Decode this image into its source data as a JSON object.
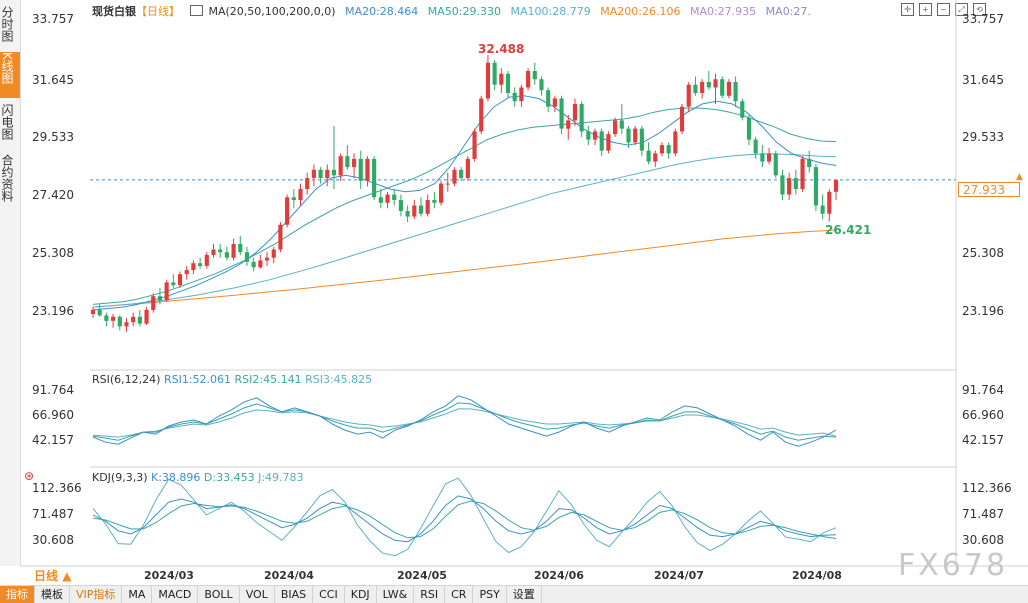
{
  "header": {
    "instrument": "现货白银",
    "period": "【日线】",
    "ma_params": "MA(20,50,100,200,0,0)",
    "ma20": "MA20:28.464",
    "ma50": "MA50:29.330",
    "ma100": "MA100:28.779",
    "ma200": "MA200:26.106",
    "ma0a": "MA0:27.935",
    "ma0b": "MA0:27."
  },
  "left_tabs": [
    {
      "label": "分时图"
    },
    {
      "label": "K线图",
      "active": true
    },
    {
      "label": "闪电图"
    },
    {
      "label": "合约资料"
    }
  ],
  "price_axis_labels": [
    "33.757",
    "31.645",
    "29.533",
    "27.420",
    "25.308",
    "23.196"
  ],
  "rsi_axis_labels": [
    "91.764",
    "66.960",
    "42.157"
  ],
  "kdj_axis_labels": [
    "112.366",
    "71.487",
    "30.608"
  ],
  "current_price": "27.933",
  "high_label": "32.488",
  "low_label": "26.421",
  "rsi_header": {
    "params": "RSI(6,12,24)",
    "rsi1": "RSI1:52.061",
    "rsi2": "RSI2:45.141",
    "rsi3": "RSI3:45.825"
  },
  "kdj_header": {
    "params": "KDJ(9,3,3)",
    "k": "K:38.896",
    "d": "D:33.453",
    "j": "J:49.783"
  },
  "x_labels": [
    "2024/03",
    "2024/04",
    "2024/05",
    "2024/06",
    "2024/07",
    "2024/08"
  ],
  "period_selector": "日线",
  "bottom_tabs": [
    "指标",
    "模板",
    "VIP指标",
    "MA",
    "MACD",
    "BOLL",
    "VOL",
    "BIAS",
    "CCI",
    "KDJ",
    "LW&",
    "RSI",
    "CR",
    "PSY",
    "设置"
  ],
  "watermark": "FX678",
  "colors": {
    "up": "#e03c3c",
    "down": "#2eaa66",
    "ma20": "#3b8fd0",
    "ma50": "#3aa6a0",
    "ma100": "#5ab0c8",
    "ma200": "#f08a24",
    "accent": "#f08a24"
  },
  "chart_data": {
    "type": "candlestick",
    "x_range": [
      "2024/02",
      "2024/08"
    ],
    "ylim": [
      23.196,
      33.757
    ],
    "candles": [
      [
        23.05,
        23.3,
        22.9,
        23.2
      ],
      [
        23.2,
        23.4,
        22.95,
        23.0
      ],
      [
        23.0,
        23.1,
        22.6,
        22.8
      ],
      [
        22.8,
        23.05,
        22.55,
        22.95
      ],
      [
        22.95,
        23.0,
        22.45,
        22.6
      ],
      [
        22.6,
        22.9,
        22.4,
        22.75
      ],
      [
        22.75,
        23.1,
        22.6,
        22.95
      ],
      [
        22.95,
        23.2,
        22.6,
        22.7
      ],
      [
        22.7,
        23.3,
        22.65,
        23.2
      ],
      [
        23.2,
        23.8,
        23.1,
        23.7
      ],
      [
        23.7,
        24.0,
        23.4,
        23.55
      ],
      [
        23.55,
        24.3,
        23.5,
        24.2
      ],
      [
        24.2,
        24.5,
        24.0,
        24.1
      ],
      [
        24.1,
        24.6,
        24.0,
        24.5
      ],
      [
        24.5,
        24.8,
        24.3,
        24.65
      ],
      [
        24.65,
        25.0,
        24.5,
        24.9
      ],
      [
        24.9,
        25.1,
        24.7,
        24.8
      ],
      [
        24.8,
        25.3,
        24.7,
        25.2
      ],
      [
        25.2,
        25.6,
        25.1,
        25.4
      ],
      [
        25.4,
        25.6,
        25.1,
        25.3
      ],
      [
        25.3,
        25.5,
        25.0,
        25.1
      ],
      [
        25.1,
        25.8,
        25.0,
        25.6
      ],
      [
        25.6,
        25.9,
        25.2,
        25.3
      ],
      [
        25.3,
        25.5,
        24.8,
        24.95
      ],
      [
        24.95,
        25.1,
        24.6,
        24.75
      ],
      [
        24.75,
        25.2,
        24.7,
        25.0
      ],
      [
        25.0,
        25.3,
        24.8,
        25.1
      ],
      [
        25.1,
        25.5,
        24.9,
        25.4
      ],
      [
        25.4,
        26.4,
        25.3,
        26.3
      ],
      [
        26.3,
        27.4,
        26.2,
        27.3
      ],
      [
        27.3,
        27.6,
        26.9,
        27.2
      ],
      [
        27.2,
        27.8,
        27.0,
        27.6
      ],
      [
        27.6,
        28.2,
        27.4,
        28.0
      ],
      [
        28.0,
        28.5,
        27.7,
        28.3
      ],
      [
        28.3,
        28.4,
        27.8,
        28.0
      ],
      [
        28.0,
        28.5,
        27.7,
        28.3
      ],
      [
        28.3,
        29.9,
        27.6,
        28.1
      ],
      [
        28.1,
        28.9,
        27.9,
        28.8
      ],
      [
        28.8,
        29.2,
        28.3,
        28.4
      ],
      [
        28.4,
        28.9,
        28.0,
        28.7
      ],
      [
        28.7,
        29.0,
        27.6,
        27.9
      ],
      [
        27.9,
        28.8,
        27.7,
        28.7
      ],
      [
        28.7,
        28.8,
        27.2,
        27.3
      ],
      [
        27.3,
        27.6,
        26.9,
        27.1
      ],
      [
        27.1,
        27.5,
        26.9,
        27.4
      ],
      [
        27.4,
        27.6,
        27.0,
        27.2
      ],
      [
        27.2,
        27.4,
        26.6,
        26.8
      ],
      [
        26.8,
        27.0,
        26.4,
        26.6
      ],
      [
        26.6,
        27.2,
        26.5,
        27.0
      ],
      [
        27.0,
        27.3,
        26.6,
        26.7
      ],
      [
        26.7,
        27.4,
        26.6,
        27.2
      ],
      [
        27.2,
        27.5,
        26.9,
        27.1
      ],
      [
        27.1,
        27.9,
        27.0,
        27.8
      ],
      [
        27.8,
        28.2,
        27.5,
        27.8
      ],
      [
        27.8,
        28.4,
        27.7,
        28.3
      ],
      [
        28.3,
        28.4,
        27.9,
        28.0
      ],
      [
        28.0,
        28.8,
        27.9,
        28.7
      ],
      [
        28.7,
        29.8,
        28.6,
        29.7
      ],
      [
        29.7,
        31.0,
        29.6,
        30.9
      ],
      [
        30.9,
        32.49,
        30.8,
        32.2
      ],
      [
        32.2,
        32.3,
        31.2,
        31.4
      ],
      [
        31.4,
        32.0,
        31.1,
        31.8
      ],
      [
        31.8,
        31.9,
        30.9,
        31.1
      ],
      [
        31.1,
        31.3,
        30.6,
        30.8
      ],
      [
        30.8,
        31.4,
        30.6,
        31.3
      ],
      [
        31.3,
        32.0,
        31.2,
        31.9
      ],
      [
        31.9,
        32.2,
        31.4,
        31.6
      ],
      [
        31.6,
        31.7,
        31.0,
        31.2
      ],
      [
        31.2,
        31.3,
        30.4,
        30.6
      ],
      [
        30.6,
        31.0,
        30.4,
        30.9
      ],
      [
        30.9,
        31.0,
        29.6,
        29.8
      ],
      [
        29.8,
        30.3,
        29.4,
        30.1
      ],
      [
        30.1,
        30.9,
        29.9,
        30.7
      ],
      [
        30.7,
        30.8,
        29.5,
        29.7
      ],
      [
        29.7,
        29.9,
        29.2,
        29.4
      ],
      [
        29.4,
        29.8,
        29.2,
        29.7
      ],
      [
        29.7,
        29.8,
        28.8,
        29.0
      ],
      [
        29.0,
        29.7,
        28.9,
        29.6
      ],
      [
        29.6,
        30.2,
        29.5,
        30.1
      ],
      [
        30.1,
        30.7,
        29.6,
        29.8
      ],
      [
        29.8,
        29.9,
        29.1,
        29.3
      ],
      [
        29.3,
        29.9,
        29.2,
        29.8
      ],
      [
        29.8,
        29.9,
        28.8,
        29.0
      ],
      [
        29.0,
        29.3,
        28.5,
        28.6
      ],
      [
        28.6,
        29.0,
        28.4,
        28.9
      ],
      [
        28.9,
        29.3,
        28.8,
        29.2
      ],
      [
        29.2,
        29.3,
        28.7,
        28.9
      ],
      [
        28.9,
        29.8,
        28.8,
        29.7
      ],
      [
        29.7,
        30.7,
        29.6,
        30.6
      ],
      [
        30.6,
        31.5,
        30.4,
        31.4
      ],
      [
        31.4,
        31.7,
        31.0,
        31.1
      ],
      [
        31.1,
        31.6,
        30.9,
        31.5
      ],
      [
        31.5,
        31.9,
        31.2,
        31.3
      ],
      [
        31.3,
        31.8,
        30.7,
        31.6
      ],
      [
        31.6,
        31.7,
        30.9,
        31.0
      ],
      [
        31.0,
        31.6,
        30.9,
        31.5
      ],
      [
        31.5,
        31.7,
        30.6,
        30.8
      ],
      [
        30.8,
        30.9,
        30.1,
        30.2
      ],
      [
        30.2,
        30.3,
        29.2,
        29.4
      ],
      [
        29.4,
        29.5,
        28.7,
        28.9
      ],
      [
        28.9,
        29.2,
        28.4,
        28.6
      ],
      [
        28.6,
        29.1,
        28.5,
        28.9
      ],
      [
        28.9,
        29.0,
        28.0,
        28.1
      ],
      [
        28.1,
        28.3,
        27.2,
        27.4
      ],
      [
        27.4,
        28.2,
        27.2,
        28.0
      ],
      [
        28.0,
        28.3,
        27.4,
        27.6
      ],
      [
        27.6,
        28.8,
        27.5,
        28.7
      ],
      [
        28.7,
        29.0,
        28.2,
        28.4
      ],
      [
        28.4,
        28.5,
        26.8,
        27.0
      ],
      [
        27.0,
        27.4,
        26.5,
        26.7
      ],
      [
        26.7,
        27.6,
        26.42,
        27.5
      ],
      [
        27.5,
        27.93,
        27.2,
        27.93
      ]
    ],
    "ma20": [
      23.2,
      23.25,
      23.3,
      23.4,
      23.55,
      23.7,
      23.9,
      24.1,
      24.35,
      24.6,
      24.9,
      25.3,
      25.8,
      26.4,
      27.0,
      27.6,
      28.0,
      28.1,
      28.0,
      27.8,
      27.6,
      27.5,
      27.55,
      27.8,
      28.4,
      29.2,
      30.0,
      30.6,
      30.95,
      31.0,
      30.9,
      30.6,
      30.2,
      29.8,
      29.5,
      29.3,
      29.2,
      29.3,
      29.6,
      30.0,
      30.4,
      30.7,
      30.8,
      30.7,
      30.4,
      29.9,
      29.3,
      28.9,
      28.7,
      28.55,
      28.46
    ],
    "ma50": [
      23.4,
      23.45,
      23.5,
      23.6,
      23.75,
      23.9,
      24.1,
      24.3,
      24.5,
      24.75,
      25.0,
      25.3,
      25.6,
      25.95,
      26.3,
      26.6,
      26.9,
      27.15,
      27.35,
      27.55,
      27.75,
      27.95,
      28.2,
      28.5,
      28.8,
      29.1,
      29.4,
      29.6,
      29.75,
      29.85,
      29.9,
      29.95,
      30.0,
      30.05,
      30.1,
      30.15,
      30.25,
      30.4,
      30.5,
      30.55,
      30.55,
      30.5,
      30.4,
      30.25,
      30.05,
      29.85,
      29.6,
      29.45,
      29.35,
      29.33
    ],
    "ma100": [
      23.3,
      23.35,
      23.4,
      23.48,
      23.55,
      23.65,
      23.75,
      23.88,
      24.0,
      24.15,
      24.3,
      24.48,
      24.66,
      24.85,
      25.05,
      25.25,
      25.45,
      25.65,
      25.85,
      26.05,
      26.25,
      26.45,
      26.65,
      26.85,
      27.05,
      27.25,
      27.45,
      27.6,
      27.75,
      27.9,
      28.05,
      28.2,
      28.35,
      28.5,
      28.62,
      28.72,
      28.8,
      28.85,
      28.88,
      28.87,
      28.84,
      28.8,
      28.78
    ],
    "ma200": [
      23.3,
      23.38,
      23.46,
      23.55,
      23.64,
      23.74,
      23.84,
      23.94,
      24.05,
      24.16,
      24.27,
      24.39,
      24.51,
      24.63,
      24.75,
      24.87,
      25.0,
      25.13,
      25.26,
      25.39,
      25.52,
      25.65,
      25.78,
      25.88,
      25.98,
      26.05,
      26.11
    ],
    "rsi_ylim": [
      42.157,
      91.764
    ],
    "rsi1": [
      45,
      40,
      38,
      44,
      50,
      48,
      56,
      60,
      62,
      58,
      66,
      72,
      80,
      84,
      76,
      70,
      74,
      70,
      66,
      58,
      52,
      48,
      50,
      44,
      52,
      56,
      62,
      70,
      76,
      86,
      82,
      74,
      66,
      58,
      54,
      50,
      46,
      50,
      56,
      60,
      54,
      50,
      56,
      60,
      64,
      62,
      70,
      76,
      74,
      68,
      62,
      56,
      48,
      42,
      50,
      40,
      36,
      40,
      45,
      52
    ],
    "rsi2": [
      46,
      44,
      42,
      46,
      50,
      50,
      55,
      58,
      60,
      58,
      63,
      68,
      74,
      78,
      74,
      70,
      72,
      70,
      66,
      61,
      57,
      54,
      54,
      50,
      54,
      57,
      61,
      67,
      72,
      79,
      78,
      73,
      68,
      63,
      59,
      56,
      53,
      54,
      57,
      59,
      56,
      54,
      57,
      59,
      62,
      61,
      66,
      70,
      70,
      66,
      62,
      58,
      53,
      48,
      51,
      45,
      42,
      44,
      46,
      45
    ],
    "rsi3": [
      47,
      46,
      45,
      47,
      50,
      51,
      54,
      56,
      58,
      57,
      60,
      64,
      69,
      72,
      71,
      69,
      70,
      69,
      66,
      63,
      60,
      58,
      57,
      55,
      56,
      58,
      60,
      64,
      68,
      73,
      73,
      71,
      68,
      65,
      62,
      60,
      58,
      58,
      59,
      60,
      58,
      57,
      58,
      59,
      61,
      61,
      64,
      67,
      67,
      65,
      63,
      60,
      57,
      53,
      54,
      50,
      47,
      48,
      49,
      46
    ],
    "kdj_ylim": [
      30.608,
      112.366
    ],
    "kdj_k": [
      70,
      60,
      45,
      40,
      50,
      70,
      90,
      95,
      90,
      80,
      82,
      86,
      80,
      70,
      60,
      50,
      55,
      65,
      80,
      90,
      86,
      70,
      55,
      40,
      30,
      28,
      40,
      60,
      85,
      100,
      95,
      80,
      60,
      45,
      40,
      45,
      60,
      80,
      78,
      65,
      50,
      40,
      45,
      55,
      70,
      85,
      80,
      65,
      50,
      38,
      36,
      40,
      50,
      60,
      55,
      45,
      40,
      36,
      38,
      39
    ],
    "kdj_d": [
      65,
      62,
      55,
      48,
      48,
      58,
      72,
      84,
      88,
      85,
      83,
      84,
      82,
      76,
      68,
      60,
      57,
      60,
      70,
      80,
      84,
      78,
      68,
      55,
      42,
      34,
      36,
      48,
      68,
      86,
      92,
      88,
      76,
      62,
      50,
      46,
      52,
      66,
      74,
      70,
      60,
      50,
      46,
      50,
      60,
      74,
      78,
      72,
      62,
      50,
      42,
      40,
      45,
      52,
      54,
      50,
      44,
      40,
      36,
      33
    ],
    "kdj_j": [
      80,
      56,
      25,
      24,
      54,
      94,
      126,
      117,
      94,
      70,
      80,
      90,
      76,
      58,
      44,
      30,
      51,
      75,
      100,
      110,
      90,
      54,
      29,
      10,
      6,
      16,
      48,
      84,
      119,
      128,
      101,
      64,
      28,
      11,
      20,
      43,
      76,
      108,
      86,
      55,
      30,
      20,
      43,
      65,
      90,
      107,
      84,
      51,
      26,
      14,
      24,
      40,
      60,
      76,
      57,
      35,
      32,
      28,
      42,
      50
    ]
  }
}
